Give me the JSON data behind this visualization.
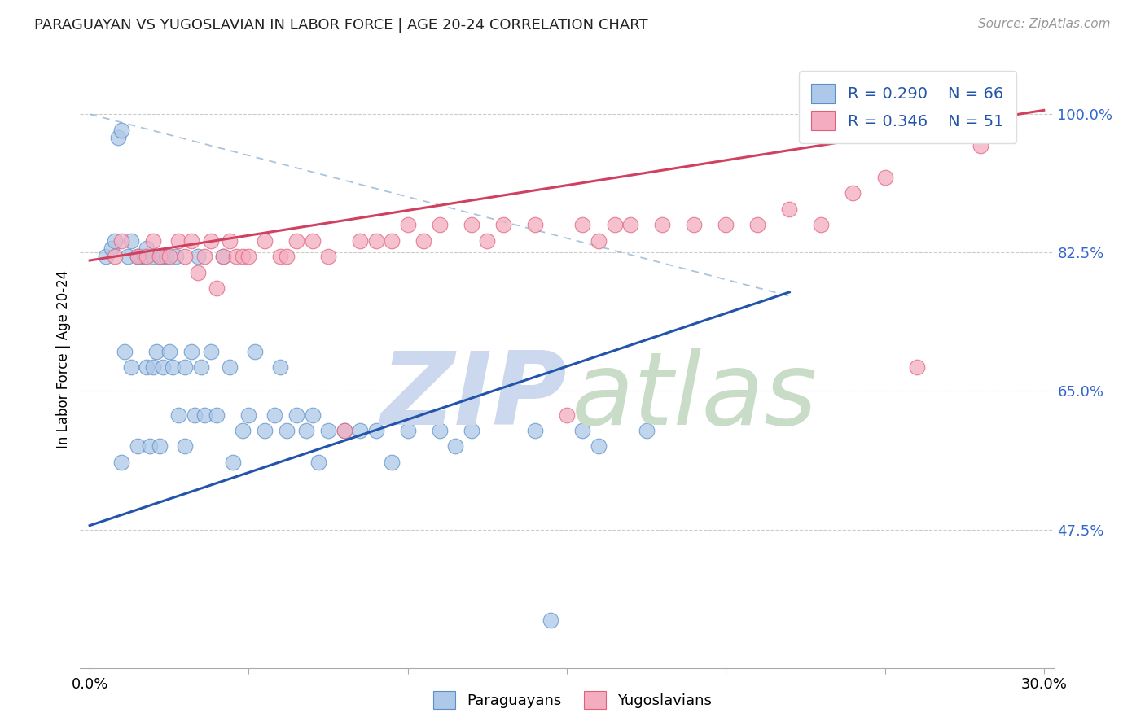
{
  "title": "PARAGUAYAN VS YUGOSLAVIAN IN LABOR FORCE | AGE 20-24 CORRELATION CHART",
  "source": "Source: ZipAtlas.com",
  "ylabel": "In Labor Force | Age 20-24",
  "ytick_labels": [
    "47.5%",
    "65.0%",
    "82.5%",
    "100.0%"
  ],
  "ytick_values": [
    0.475,
    0.65,
    0.825,
    1.0
  ],
  "xlim": [
    0.0,
    0.3
  ],
  "ylim": [
    0.3,
    1.08
  ],
  "blue_R": 0.29,
  "blue_N": 66,
  "pink_R": 0.346,
  "pink_N": 51,
  "blue_color": "#adc8e8",
  "pink_color": "#f4adc0",
  "blue_edge_color": "#5a8fc8",
  "pink_edge_color": "#e0607a",
  "blue_line_color": "#2255aa",
  "pink_line_color": "#d04060",
  "legend_color": "#2255aa",
  "watermark_zip_color": "#ccd8ee",
  "watermark_atlas_color": "#c8dcc8",
  "blue_line": {
    "x0": 0.0,
    "x1": 0.22,
    "y0": 0.48,
    "y1": 0.775
  },
  "pink_line": {
    "x0": 0.0,
    "x1": 0.3,
    "y0": 0.815,
    "y1": 1.005
  },
  "diag_line": {
    "x0": 0.0,
    "x1": 0.22,
    "y0": 1.0,
    "y1": 0.77
  },
  "blue_x": [
    0.005,
    0.007,
    0.008,
    0.009,
    0.01,
    0.01,
    0.011,
    0.012,
    0.013,
    0.013,
    0.015,
    0.015,
    0.016,
    0.017,
    0.018,
    0.018,
    0.019,
    0.02,
    0.02,
    0.021,
    0.022,
    0.022,
    0.023,
    0.023,
    0.024,
    0.025,
    0.026,
    0.027,
    0.028,
    0.03,
    0.03,
    0.032,
    0.033,
    0.034,
    0.035,
    0.036,
    0.038,
    0.04,
    0.042,
    0.044,
    0.045,
    0.048,
    0.05,
    0.052,
    0.055,
    0.058,
    0.06,
    0.062,
    0.065,
    0.068,
    0.07,
    0.072,
    0.075,
    0.08,
    0.085,
    0.09,
    0.095,
    0.1,
    0.11,
    0.115,
    0.12,
    0.14,
    0.155,
    0.16,
    0.175,
    0.145
  ],
  "blue_y": [
    0.82,
    0.83,
    0.84,
    0.97,
    0.98,
    0.56,
    0.7,
    0.82,
    0.84,
    0.68,
    0.82,
    0.58,
    0.82,
    0.82,
    0.83,
    0.68,
    0.58,
    0.82,
    0.68,
    0.7,
    0.82,
    0.58,
    0.82,
    0.68,
    0.82,
    0.7,
    0.68,
    0.82,
    0.62,
    0.68,
    0.58,
    0.7,
    0.62,
    0.82,
    0.68,
    0.62,
    0.7,
    0.62,
    0.82,
    0.68,
    0.56,
    0.6,
    0.62,
    0.7,
    0.6,
    0.62,
    0.68,
    0.6,
    0.62,
    0.6,
    0.62,
    0.56,
    0.6,
    0.6,
    0.6,
    0.6,
    0.56,
    0.6,
    0.6,
    0.58,
    0.6,
    0.6,
    0.6,
    0.58,
    0.6,
    0.36
  ],
  "pink_x": [
    0.008,
    0.01,
    0.015,
    0.018,
    0.02,
    0.022,
    0.025,
    0.028,
    0.03,
    0.032,
    0.034,
    0.036,
    0.038,
    0.04,
    0.042,
    0.044,
    0.046,
    0.048,
    0.05,
    0.055,
    0.06,
    0.062,
    0.065,
    0.07,
    0.075,
    0.08,
    0.085,
    0.09,
    0.095,
    0.1,
    0.105,
    0.11,
    0.12,
    0.125,
    0.13,
    0.14,
    0.15,
    0.155,
    0.16,
    0.165,
    0.17,
    0.18,
    0.19,
    0.2,
    0.21,
    0.22,
    0.23,
    0.24,
    0.25,
    0.26,
    0.28
  ],
  "pink_y": [
    0.82,
    0.84,
    0.82,
    0.82,
    0.84,
    0.82,
    0.82,
    0.84,
    0.82,
    0.84,
    0.8,
    0.82,
    0.84,
    0.78,
    0.82,
    0.84,
    0.82,
    0.82,
    0.82,
    0.84,
    0.82,
    0.82,
    0.84,
    0.84,
    0.82,
    0.6,
    0.84,
    0.84,
    0.84,
    0.86,
    0.84,
    0.86,
    0.86,
    0.84,
    0.86,
    0.86,
    0.62,
    0.86,
    0.84,
    0.86,
    0.86,
    0.86,
    0.86,
    0.86,
    0.86,
    0.88,
    0.86,
    0.9,
    0.92,
    0.68,
    0.96
  ]
}
